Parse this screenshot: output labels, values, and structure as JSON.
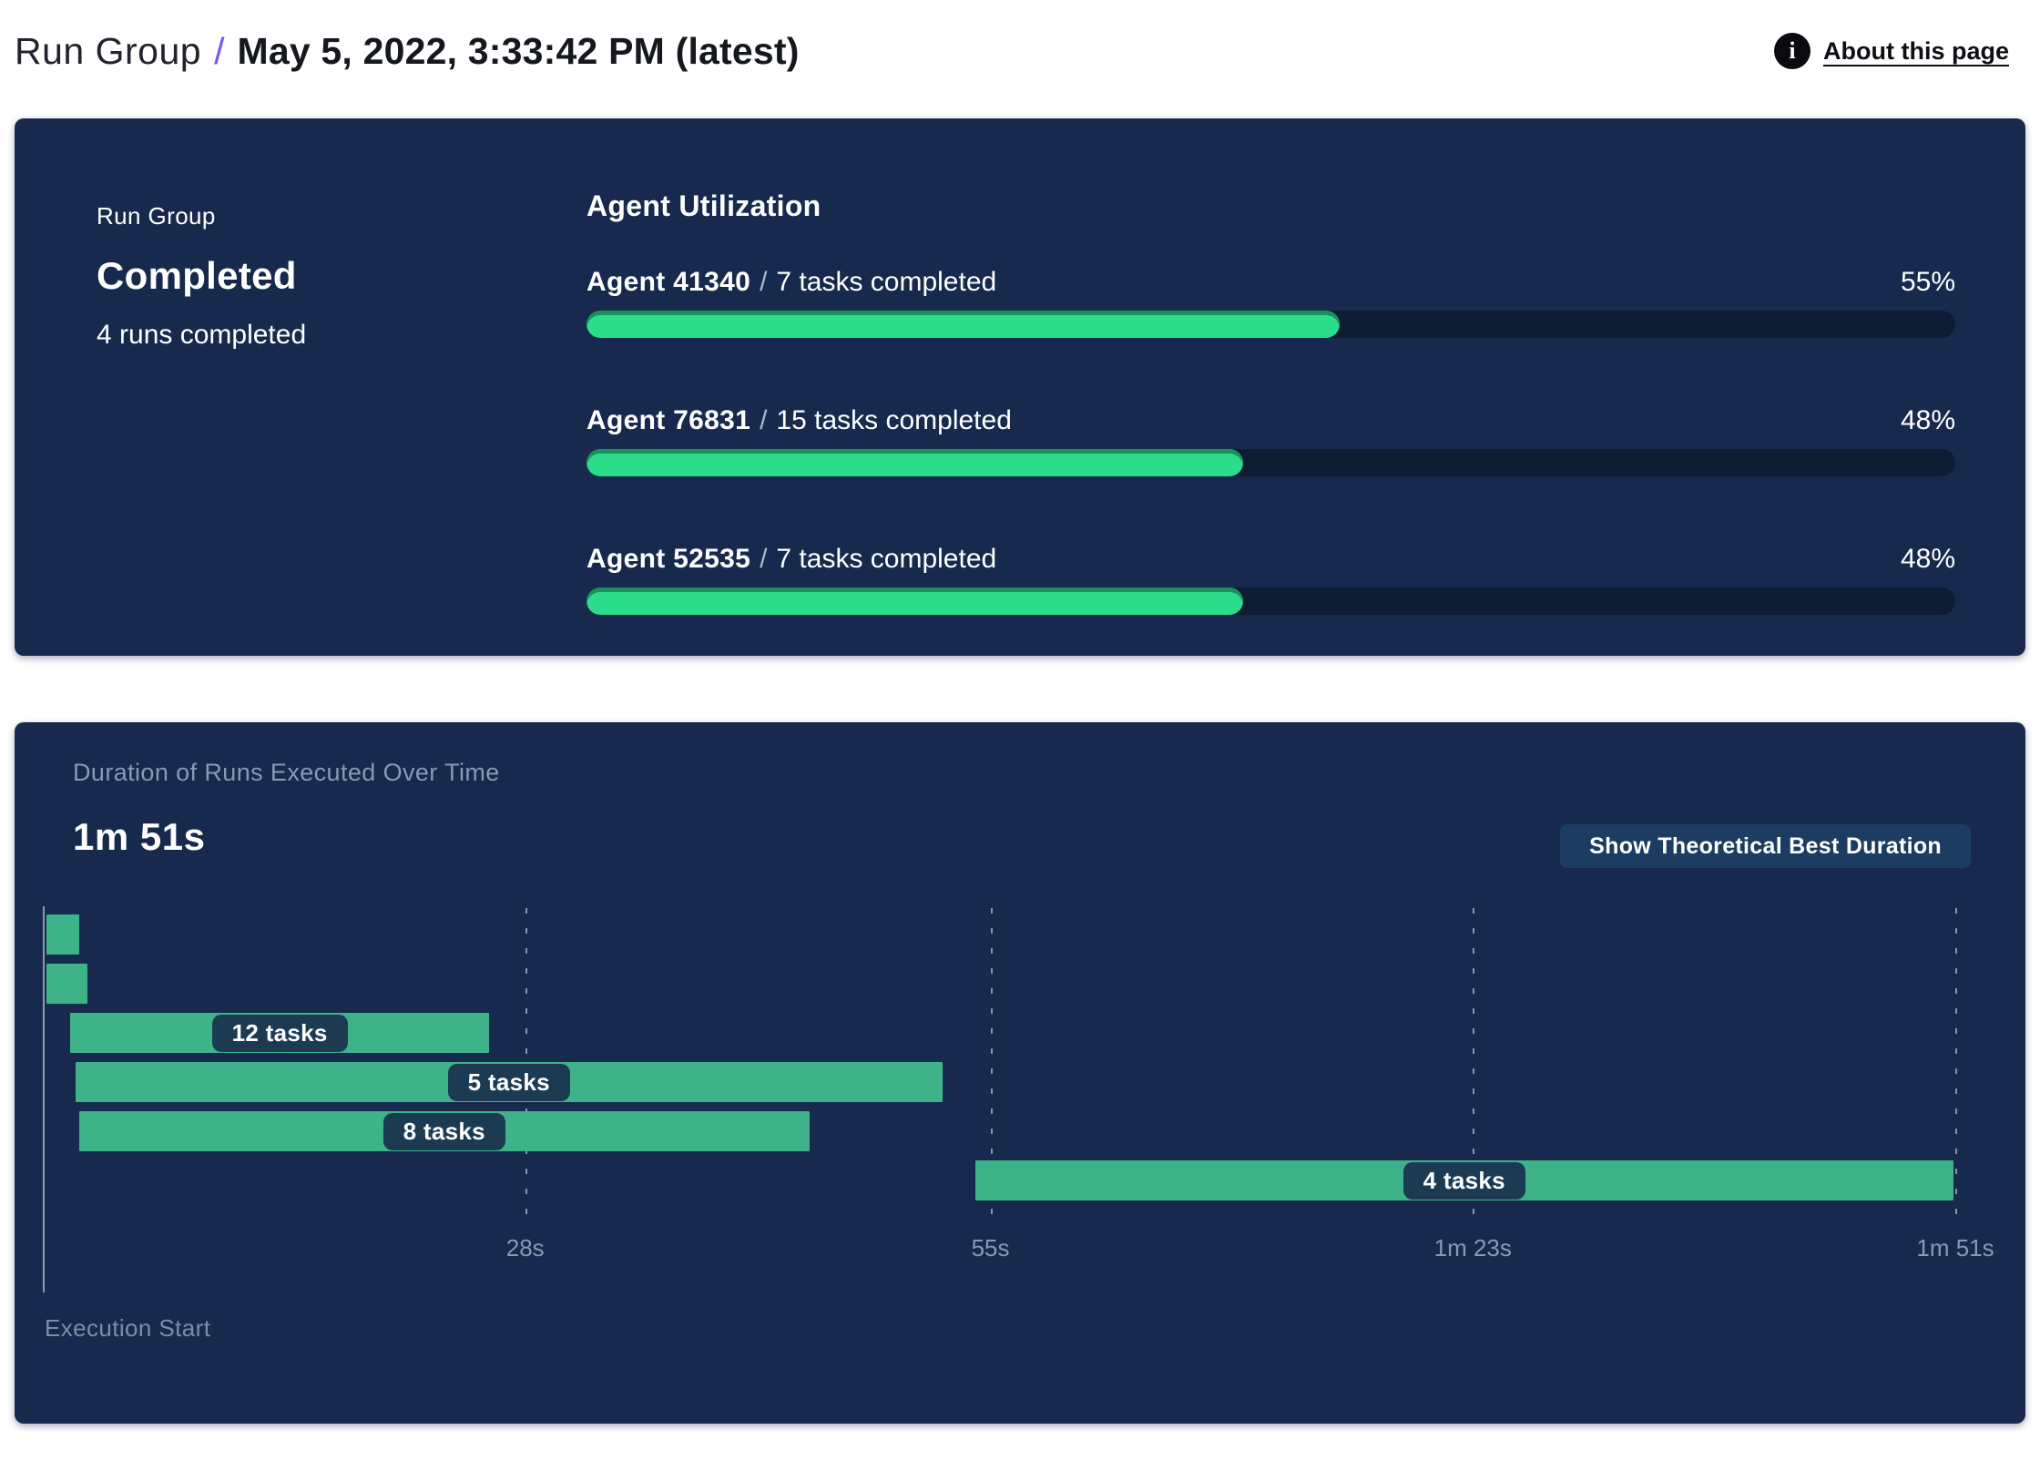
{
  "header": {
    "breadcrumb_root": "Run Group",
    "separator": "/",
    "title": "May 5, 2022, 3:33:42 PM (latest)",
    "info_icon_glyph": "i",
    "about_link": "About this page"
  },
  "summary_panel": {
    "kicker": "Run Group",
    "status": "Completed",
    "runs_completed": "4 runs completed",
    "utilization_title": "Agent Utilization",
    "agents": [
      {
        "name": "Agent 41340",
        "sep": "/",
        "tasks": "7 tasks completed",
        "percent_label": "55%",
        "percent_value": 55
      },
      {
        "name": "Agent 76831",
        "sep": "/",
        "tasks": "15 tasks completed",
        "percent_label": "48%",
        "percent_value": 48
      },
      {
        "name": "Agent 52535",
        "sep": "/",
        "tasks": "7 tasks completed",
        "percent_label": "48%",
        "percent_value": 48
      }
    ]
  },
  "duration_panel": {
    "title": "Duration of Runs Executed Over Time",
    "total_duration": "1m 51s",
    "button_label": "Show Theoretical Best Duration",
    "axis_label": "Execution Start"
  },
  "chart_data": {
    "type": "bar",
    "subtype": "gantt-timeline",
    "title": "Duration of Runs Executed Over Time",
    "total_duration_label": "1m 51s",
    "x_axis_unit": "seconds",
    "x_range_s": [
      0,
      111
    ],
    "xlabel": "Execution Start",
    "grid": "dashed-vertical",
    "ticks": [
      {
        "s": 28,
        "label": "28s"
      },
      {
        "s": 55,
        "label": "55s"
      },
      {
        "s": 83,
        "label": "1m 23s"
      },
      {
        "s": 111,
        "label": "1m 51s"
      }
    ],
    "bars": [
      {
        "row": 1,
        "start_s": 0.2,
        "end_s": 2.1,
        "label": ""
      },
      {
        "row": 2,
        "start_s": 0.2,
        "end_s": 2.6,
        "label": ""
      },
      {
        "row": 3,
        "start_s": 1.6,
        "end_s": 25.9,
        "label": "12 tasks"
      },
      {
        "row": 4,
        "start_s": 1.9,
        "end_s": 52.2,
        "label": "5 tasks"
      },
      {
        "row": 5,
        "start_s": 2.1,
        "end_s": 44.5,
        "label": "8 tasks"
      },
      {
        "row": 6,
        "start_s": 54.1,
        "end_s": 110.9,
        "label": "4 tasks"
      }
    ]
  },
  "colors": {
    "panel_bg": "#172a4d",
    "progress_fill": "#2bdc8b",
    "progress_track": "#0e1c33",
    "gantt_bar": "#3eb38a",
    "chip_bg": "#1c3b53",
    "accent_slash": "#7a52f5",
    "muted_text": "#8b99b2",
    "button_bg": "#1d3c61"
  }
}
